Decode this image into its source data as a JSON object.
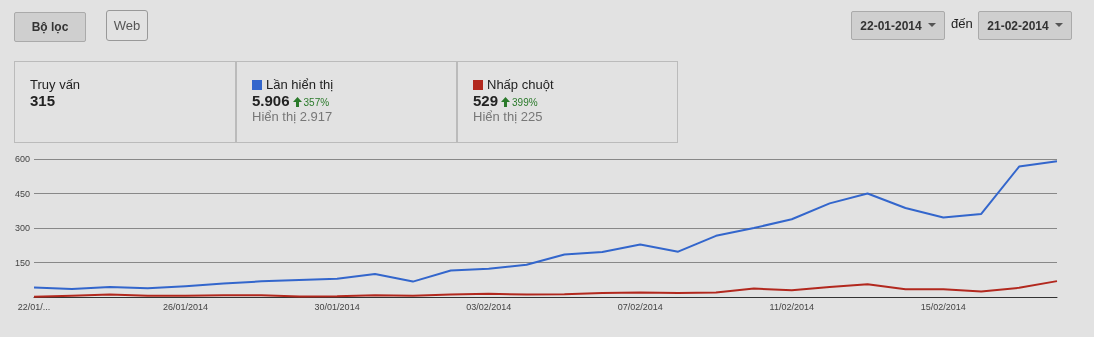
{
  "chart_data": {
    "type": "line",
    "categories": [
      "22/01/...",
      null,
      null,
      null,
      "26/01/2014",
      null,
      null,
      null,
      "30/01/2014",
      null,
      null,
      null,
      "03/02/2014",
      null,
      null,
      null,
      "07/02/2014",
      null,
      null,
      null,
      "11/02/2014",
      null,
      null,
      null,
      "15/02/2014",
      null,
      null,
      null
    ],
    "series": [
      {
        "name": "Lần hiển thị",
        "color": "#3366cc",
        "values": [
          41,
          35,
          44,
          38,
          47,
          59,
          68,
          74,
          79,
          100,
          67,
          115,
          123,
          140,
          185,
          196,
          228,
          197,
          266,
          300,
          338,
          407,
          450,
          387,
          346,
          361,
          567,
          590
        ]
      },
      {
        "name": "Nhấp chuột",
        "color": "#b2281e",
        "values": [
          1,
          5,
          11,
          5,
          5,
          8,
          8,
          2,
          3,
          8,
          5,
          11,
          14,
          11,
          12,
          17,
          20,
          17,
          20,
          37,
          29,
          44,
          55,
          34,
          34,
          24,
          40,
          69
        ]
      }
    ],
    "ylim": [
      0,
      600
    ],
    "yticks": [
      150,
      300,
      450,
      600
    ],
    "grid": "y",
    "legend": "top left",
    "marker": "none",
    "line_style": "solid",
    "annotations": [
      "Bộ lọc",
      "Web",
      "22-01-2014",
      "đến",
      "21-02-2014",
      "Truy vấn",
      "315",
      "5.906",
      "357%",
      "Hiển thị 2.917",
      "529",
      "399%",
      "Hiển thị 225"
    ]
  }
}
